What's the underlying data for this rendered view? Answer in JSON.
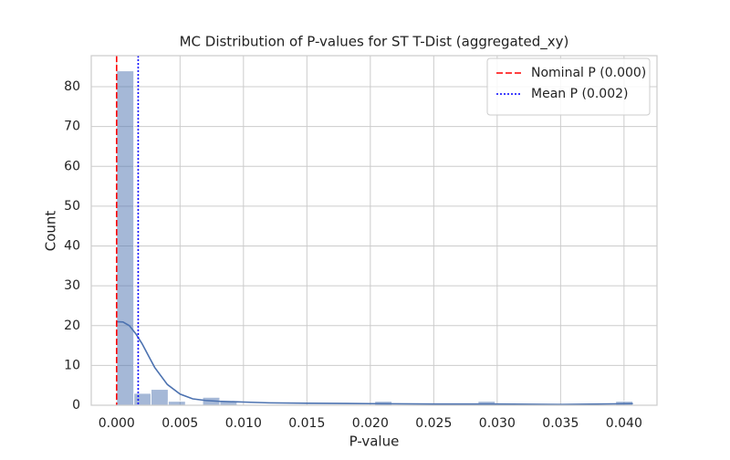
{
  "chart_data": {
    "type": "histogram",
    "title": "MC Distribution of P-values for ST T-Dist (aggregated_xy)",
    "xlabel": "P-value",
    "ylabel": "Count",
    "bins": [
      0,
      0.00136,
      0.00271,
      0.00407,
      0.00543,
      0.00678,
      0.00814,
      0.0095,
      0.01085,
      0.01221,
      0.01357,
      0.01492,
      0.01628,
      0.01764,
      0.01899,
      0.02035,
      0.02171,
      0.02306,
      0.02442,
      0.02578,
      0.02713,
      0.02849,
      0.02985,
      0.0312,
      0.03256,
      0.03392,
      0.03527,
      0.03663,
      0.03799,
      0.03934,
      0.0407
    ],
    "counts": [
      84,
      3,
      4,
      1,
      0,
      2,
      1,
      0,
      0,
      0,
      0,
      0,
      0,
      0,
      0,
      1,
      0,
      0,
      0,
      0,
      0,
      1,
      0,
      0,
      0,
      0,
      0,
      0,
      0,
      1
    ],
    "color": "#4c72b0",
    "kde": {
      "x": [
        0,
        0.0005,
        0.001,
        0.0015,
        0.002,
        0.0025,
        0.003,
        0.004,
        0.005,
        0.006,
        0.007,
        0.008,
        0.01,
        0.012,
        0.015,
        0.02,
        0.025,
        0.03,
        0.035,
        0.0407
      ],
      "values": [
        21,
        20.9,
        20,
        18,
        15.5,
        12.5,
        9.5,
        5.2,
        2.8,
        1.6,
        1.2,
        1,
        0.8,
        0.6,
        0.5,
        0.4,
        0.3,
        0.3,
        0.2,
        0.4
      ],
      "color": "#4c72b0"
    },
    "vlines": [
      {
        "name": "Nominal P (0.000)",
        "value": 0,
        "color": "#ff0000",
        "style": "dashed"
      },
      {
        "name": "Mean P (0.002)",
        "value": 0.0017,
        "color": "#0000ff",
        "style": "dotted"
      }
    ],
    "xlim": [
      -0.002,
      0.0426
    ],
    "ylim": [
      0,
      87.8
    ],
    "xticks": [
      {
        "value": 0,
        "label": "0.000"
      },
      0.005,
      {
        "value": 0.01,
        "label": "0.010"
      },
      0.015,
      {
        "value": 0.02,
        "label": "0.020"
      },
      0.025,
      {
        "value": 0.03,
        "label": "0.030"
      },
      0.035,
      {
        "value": 0.04,
        "label": "0.040"
      }
    ],
    "yticks": [
      0,
      10,
      20,
      30,
      40,
      50,
      60,
      70,
      80
    ],
    "grid": true,
    "legend": "upper right"
  }
}
